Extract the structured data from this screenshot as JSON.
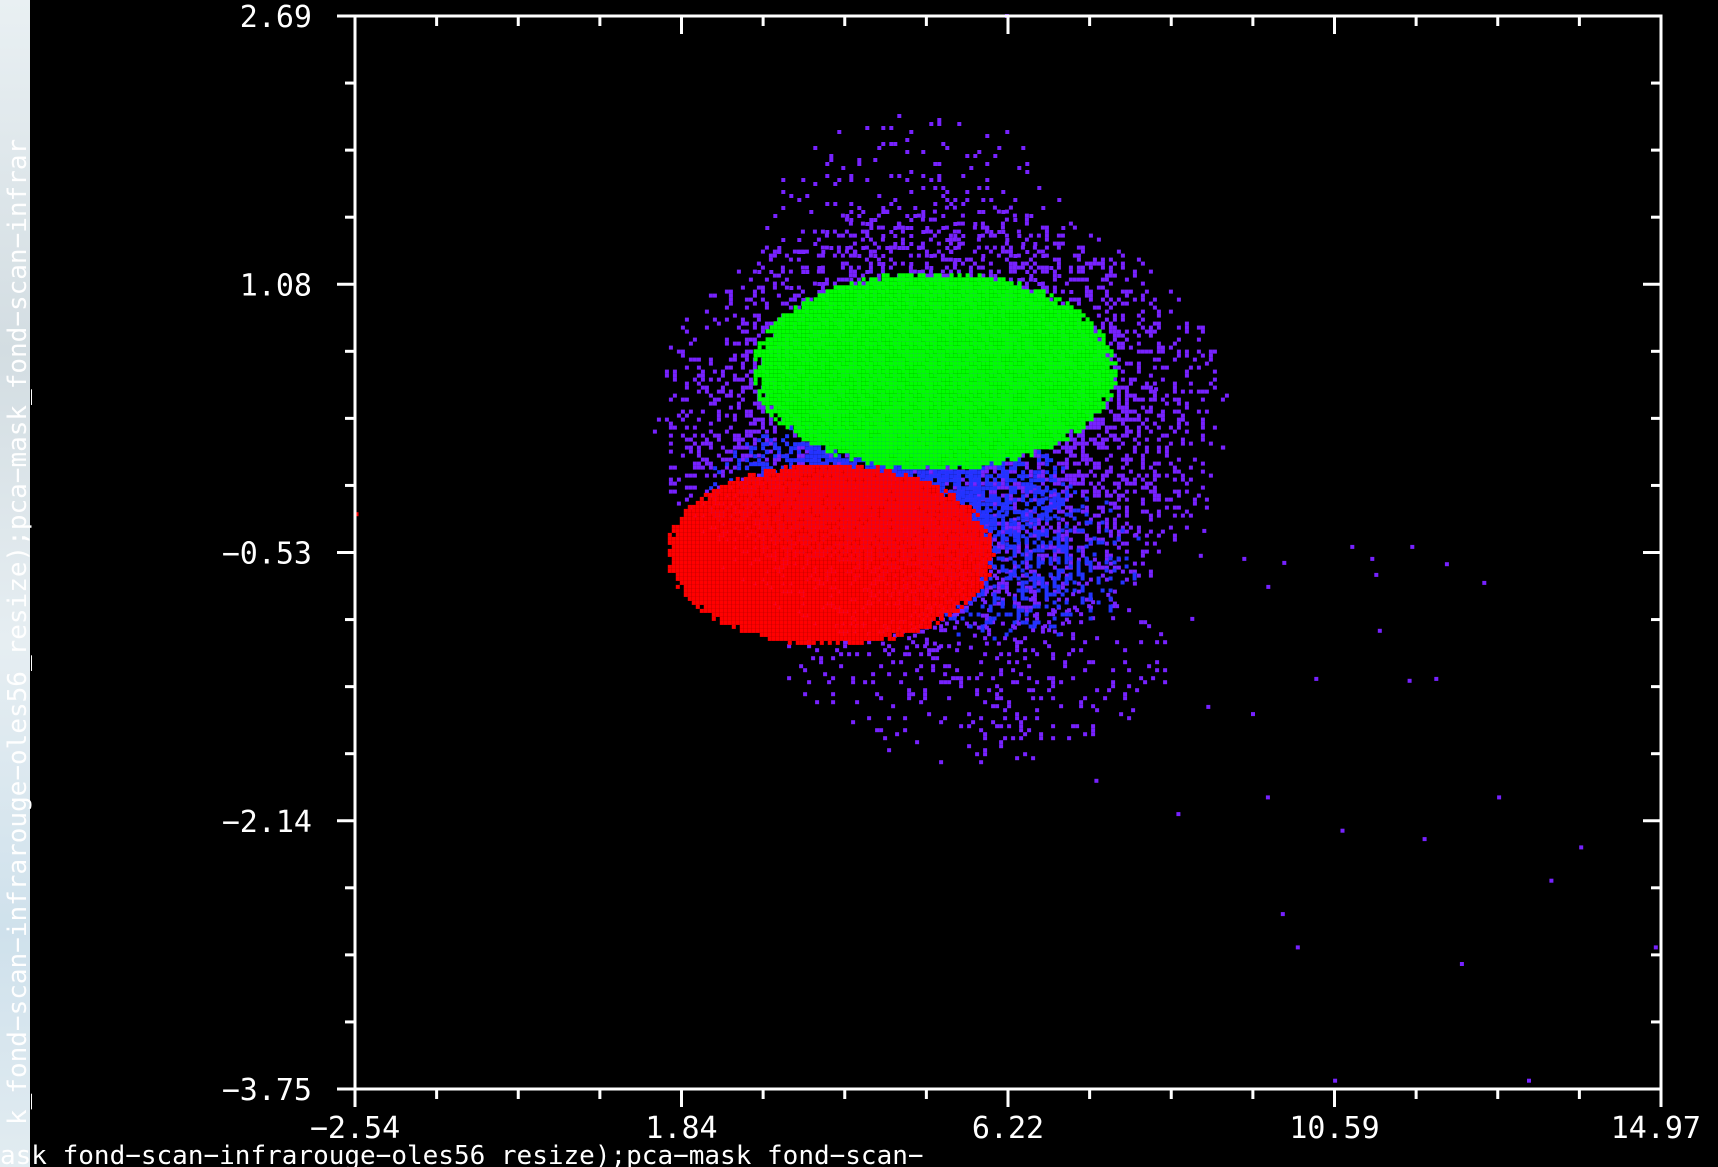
{
  "chart_data": {
    "type": "scatter",
    "xlabel": "ask_fond−scan−infrarouge−oles56_resize);pca−mask_fond−scan−",
    "ylabel": "k_fond−scan−infrarouge−oles56_resize);pca−mask_fond−scan−infrar",
    "xlim": [
      -2.54,
      14.97
    ],
    "ylim": [
      -3.75,
      2.69
    ],
    "x_ticks": [
      "−2.54",
      "1.84",
      "6.22",
      "10.59",
      "14.97"
    ],
    "y_ticks": [
      "2.69",
      "1.08",
      "−0.53",
      "−2.14",
      "−3.75"
    ],
    "grid": false,
    "colors": {
      "background": "#000000",
      "axes": "#ffffff"
    },
    "series": [
      {
        "color": "#7722ff",
        "regions": [
          {
            "cx": 5.3,
            "cy": 0.25,
            "rx": 3.9,
            "ry": 1.35,
            "density": 0.55
          },
          {
            "cx": 5.0,
            "cy": 1.3,
            "rx": 2.2,
            "ry": 0.85,
            "density": 0.12
          },
          {
            "cx": 5.8,
            "cy": -1.2,
            "rx": 2.6,
            "ry": 0.6,
            "density": 0.15
          },
          {
            "cx": 9.5,
            "cy": -0.9,
            "rx": 3.2,
            "ry": 0.8,
            "density": 0.004
          }
        ]
      },
      {
        "color": "#2233ff",
        "regions": [
          {
            "cx": 4.6,
            "cy": -0.15,
            "rx": 2.5,
            "ry": 0.45,
            "density": 0.9
          },
          {
            "cx": 6.2,
            "cy": -0.55,
            "rx": 1.8,
            "ry": 0.5,
            "density": 0.35
          }
        ]
      },
      {
        "color": "#00ff00",
        "regions": [
          {
            "cx": 5.2,
            "cy": 0.57,
            "rx": 2.45,
            "ry": 0.6,
            "density": 1.0
          }
        ]
      },
      {
        "color": "#ff0000",
        "regions": [
          {
            "cx": 3.8,
            "cy": -0.53,
            "rx": 2.2,
            "ry": 0.55,
            "density": 1.0
          }
        ]
      }
    ],
    "outliers": [
      [
        14.9,
        -2.9
      ],
      [
        13.5,
        -2.5
      ],
      [
        12.3,
        -3.0
      ],
      [
        10.7,
        -2.2
      ],
      [
        11.2,
        -1.0
      ],
      [
        12.8,
        -2.0
      ],
      [
        13.9,
        -2.3
      ],
      [
        10.1,
        -2.9
      ],
      [
        9.9,
        -2.7
      ],
      [
        11.6,
        -1.3
      ],
      [
        9.5,
        -1.5
      ],
      [
        8.8,
        -0.55
      ],
      [
        10.6,
        -3.7
      ],
      [
        13.2,
        -3.7
      ],
      [
        6.2,
        2.69
      ],
      [
        8.2,
        0.45
      ],
      [
        9.1,
        0.1
      ],
      [
        12.1,
        -0.6
      ],
      [
        9.7,
        -2.0
      ],
      [
        11.8,
        -2.25
      ],
      [
        8.5,
        -2.1
      ],
      [
        7.4,
        -1.9
      ],
      [
        -2.52,
        -0.3
      ]
    ]
  }
}
